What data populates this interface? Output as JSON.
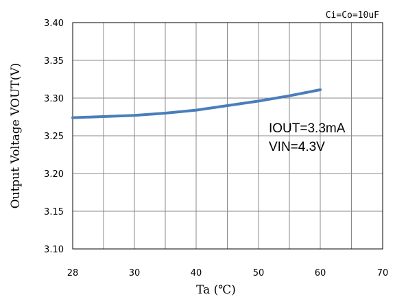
{
  "chart_data": {
    "type": "line",
    "condition_label": "Ci=Co=10uF",
    "xlabel": "Ta (℃)",
    "ylabel": "Output Voltage VOUT(V)",
    "xlim": [
      28,
      70
    ],
    "ylim": [
      3.1,
      3.4
    ],
    "x_ticks": [
      "28",
      "30",
      "40",
      "50",
      "60",
      "70"
    ],
    "y_ticks": [
      "3.40",
      "3.35",
      "3.30",
      "3.25",
      "3.20",
      "3.15",
      "3.10"
    ],
    "annotations": [
      "IOUT=3.3mA",
      "VIN=4.3V"
    ],
    "grid": true,
    "series": [
      {
        "color": "#4a7ebb",
        "x": [
          28,
          30,
          35,
          40,
          45,
          50,
          55,
          60
        ],
        "y": [
          3.274,
          3.277,
          3.28,
          3.284,
          3.29,
          3.296,
          3.303,
          3.311
        ]
      }
    ]
  }
}
